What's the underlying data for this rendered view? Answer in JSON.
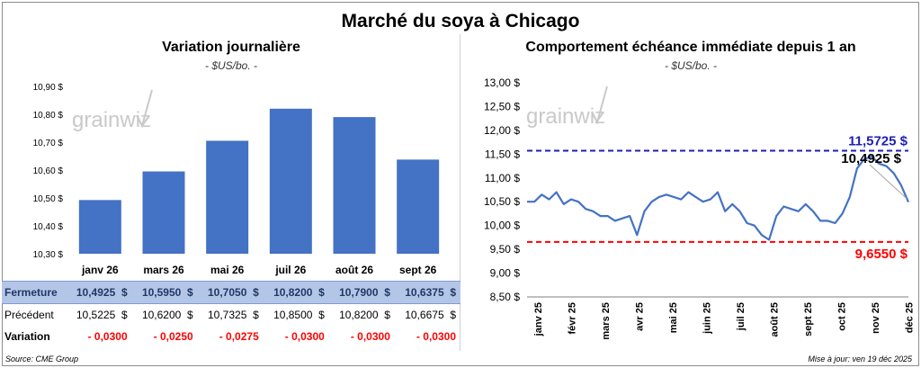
{
  "page_title": "Marché du soya à Chicago",
  "watermark": "grainwiz",
  "source": "Source: CME Group",
  "update": "Mise à jour: ven 19 déc 2025",
  "currency_suffix": "$",
  "chart_data": [
    {
      "type": "bar",
      "title": "Variation journalière",
      "unit": "- $US/bo. -",
      "categories": [
        "janv 26",
        "mars 26",
        "mai 26",
        "juil 26",
        "août 26",
        "sept 26"
      ],
      "values": [
        10.4925,
        10.595,
        10.705,
        10.82,
        10.79,
        10.6375
      ],
      "ylim": [
        10.3,
        10.9
      ],
      "yticks": [
        "10,30 $",
        "10,40 $",
        "10,50 $",
        "10,60 $",
        "10,70 $",
        "10,80 $",
        "10,90 $"
      ],
      "grid": false,
      "color": "#4472c4"
    },
    {
      "type": "line",
      "title": "Comportement échéance immédiate depuis 1 an",
      "unit": "- $US/bo. -",
      "ylim": [
        8.5,
        13.0
      ],
      "yticks": [
        "8,50 $",
        "9,00 $",
        "9,50 $",
        "10,00 $",
        "10,50 $",
        "11,00 $",
        "11,50 $",
        "12,00 $",
        "12,50 $",
        "13,00 $"
      ],
      "xticks": [
        "janv 25",
        "févr 25",
        "mars 25",
        "avr 25",
        "mai 25",
        "juin 25",
        "juil 25",
        "août 25",
        "sept 25",
        "oct 25",
        "nov 25",
        "déc 25"
      ],
      "max_line": {
        "value": 11.5725,
        "label": "11,5725 $",
        "color": "#1f1fb4"
      },
      "min_line": {
        "value": 9.655,
        "label": "9,6550 $",
        "color": "#ff0000"
      },
      "last_label": "10,4925 $",
      "line_color": "#4472c4",
      "series": [
        {
          "x": [
            "2024-12-20",
            "2024-12-27",
            "2025-01-03",
            "2025-01-10",
            "2025-01-17",
            "2025-01-24",
            "2025-01-31",
            "2025-02-07",
            "2025-02-14",
            "2025-02-21",
            "2025-02-28",
            "2025-03-07",
            "2025-03-14",
            "2025-03-21",
            "2025-03-28",
            "2025-04-04",
            "2025-04-11",
            "2025-04-18",
            "2025-04-25",
            "2025-05-02",
            "2025-05-09",
            "2025-05-16",
            "2025-05-23",
            "2025-05-30",
            "2025-06-06",
            "2025-06-13",
            "2025-06-20",
            "2025-06-27",
            "2025-07-04",
            "2025-07-11",
            "2025-07-18",
            "2025-07-25",
            "2025-08-01",
            "2025-08-08",
            "2025-08-15",
            "2025-08-22",
            "2025-08-29",
            "2025-09-05",
            "2025-09-12",
            "2025-09-19",
            "2025-09-26",
            "2025-10-03",
            "2025-10-10",
            "2025-10-17",
            "2025-10-24",
            "2025-10-31",
            "2025-11-07",
            "2025-11-14",
            "2025-11-21",
            "2025-11-28",
            "2025-12-05",
            "2025-12-12",
            "2025-12-19"
          ],
          "y": [
            10.5,
            10.5,
            10.65,
            10.55,
            10.7,
            10.45,
            10.55,
            10.5,
            10.35,
            10.3,
            10.2,
            10.2,
            10.1,
            10.15,
            10.2,
            9.8,
            10.3,
            10.5,
            10.6,
            10.65,
            10.6,
            10.55,
            10.7,
            10.6,
            10.5,
            10.55,
            10.7,
            10.3,
            10.45,
            10.3,
            10.05,
            10.0,
            9.8,
            9.7,
            10.2,
            10.4,
            10.35,
            10.3,
            10.45,
            10.3,
            10.1,
            10.1,
            10.05,
            10.25,
            10.6,
            11.2,
            11.4,
            11.45,
            11.3,
            11.25,
            11.1,
            10.85,
            10.4925
          ]
        }
      ]
    }
  ],
  "table": {
    "rows": [
      {
        "label": "Fermeture",
        "values": [
          "10,4925",
          "10,5950",
          "10,7050",
          "10,8200",
          "10,7900",
          "10,6375"
        ]
      },
      {
        "label": "Précédent",
        "values": [
          "10,5225",
          "10,6200",
          "10,7325",
          "10,8500",
          "10,8200",
          "10,6675"
        ]
      },
      {
        "label": "Variation",
        "values": [
          "- 0,0300",
          "- 0,0250",
          "- 0,0275",
          "- 0,0300",
          "- 0,0300",
          "- 0,0300"
        ]
      }
    ]
  }
}
